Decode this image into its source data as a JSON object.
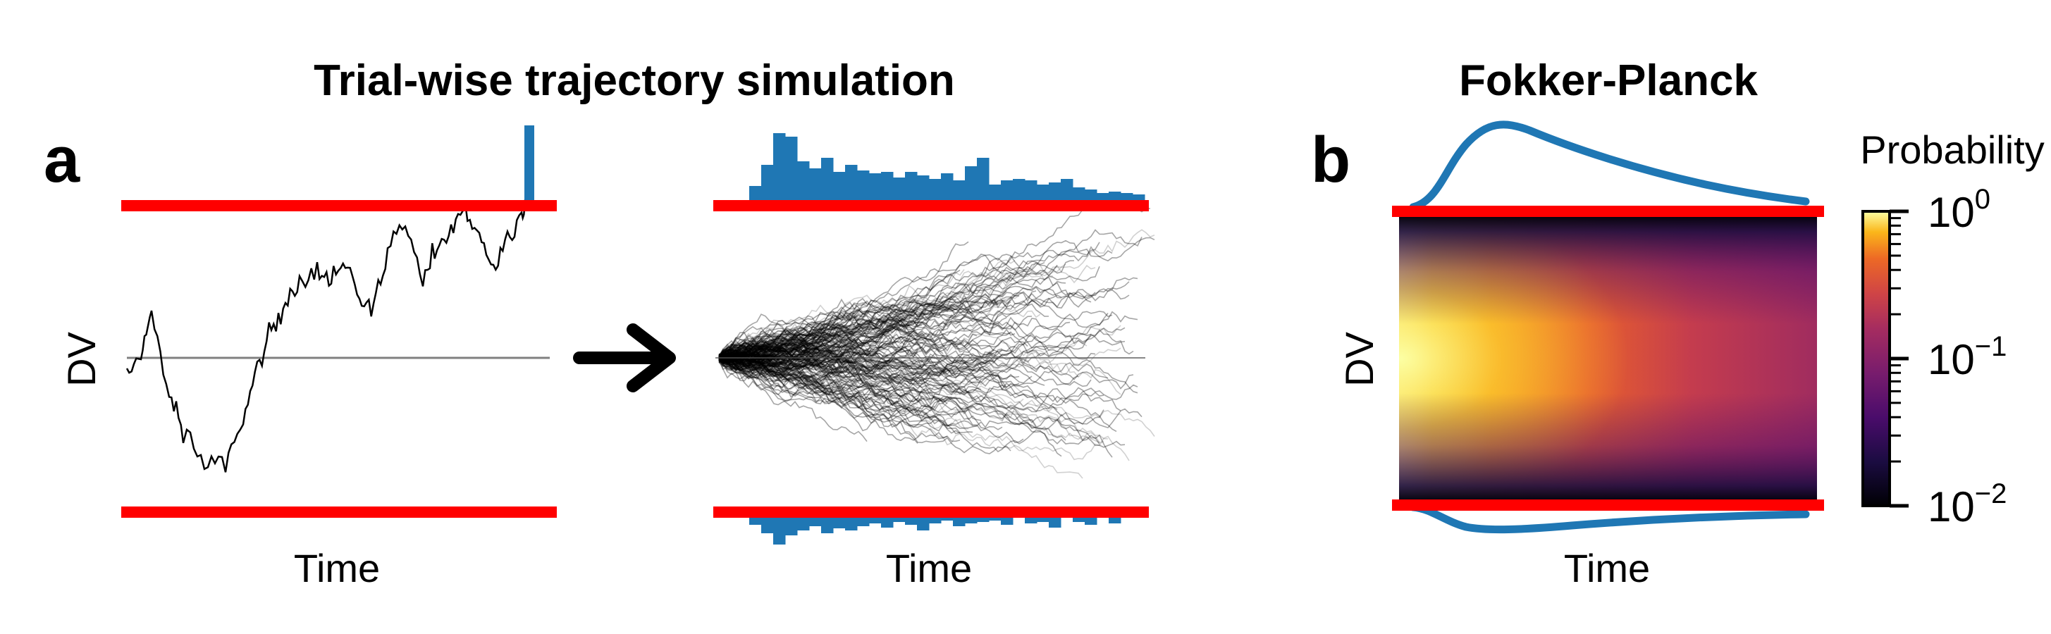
{
  "titles": {
    "simulation": "Trial-wise trajectory simulation",
    "fokker_planck": "Fokker-Planck"
  },
  "panels": {
    "a": "a",
    "b": "b"
  },
  "axes": {
    "time": "Time",
    "dv": "DV"
  },
  "colorbar": {
    "label": "Probability",
    "ticks": [
      {
        "base": "10",
        "exp": "0"
      },
      {
        "base": "10",
        "exp": "−1"
      },
      {
        "base": "10",
        "exp": "−2"
      }
    ],
    "scale": "log",
    "range": [
      0.01,
      1
    ],
    "colormap": "inferno"
  },
  "colors": {
    "boundary": "#ff0000",
    "histogram": "#1f77b4",
    "trajectory": "#000000",
    "midline": "#808080"
  },
  "icons": {
    "arrow": "right-arrow-icon"
  }
}
